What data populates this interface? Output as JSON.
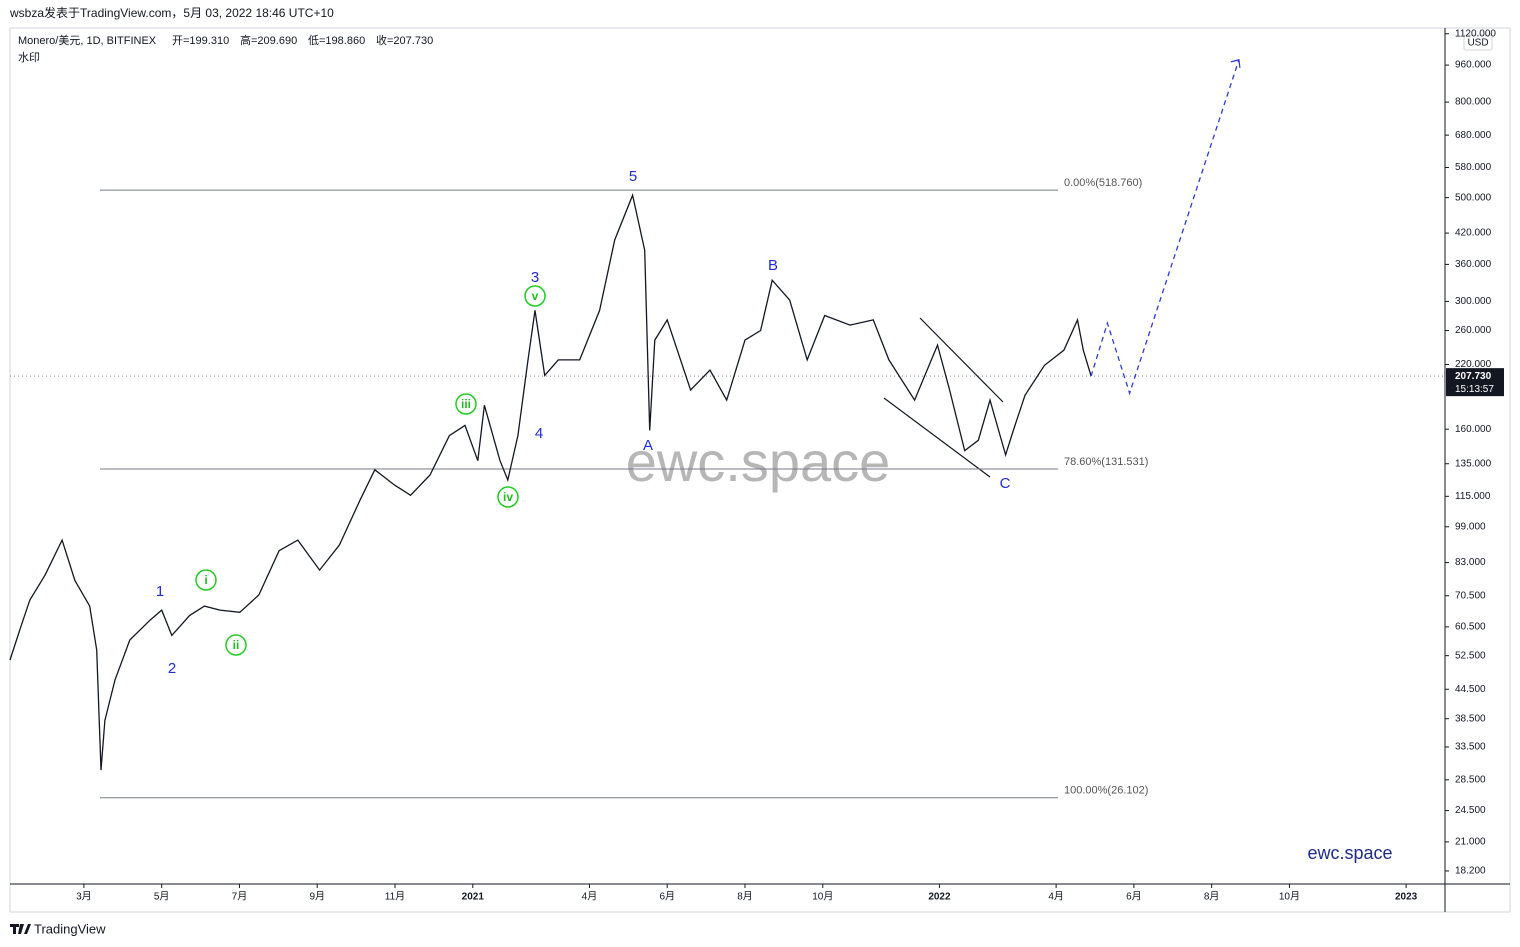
{
  "header": {
    "published": "wsbza发表于TradingView.com，5月 03, 2022 18:46 UTC+10"
  },
  "footer": {
    "brand": "TradingView"
  },
  "chart_data": {
    "type": "line",
    "title": "Monero/美元, 1D, BITFINEX",
    "ohlc": [
      "开=199.310",
      "高=209.690",
      "低=198.860",
      "收=207.730"
    ],
    "subtitle": "水印",
    "currency": "USD",
    "watermark": "ewc.space",
    "brand_note": "ewc.space",
    "log_scale": true,
    "color": "#131722",
    "projection_color": "#2f3ad8",
    "series": [
      {
        "x": [
          0.1,
          0.35,
          0.61,
          1.0,
          1.44,
          1.77,
          2.15,
          2.33,
          2.44,
          2.54,
          2.8,
          3.18,
          3.7,
          4.0,
          4.26,
          4.72,
          5.1,
          5.5,
          6.01,
          6.5,
          7.02,
          7.5,
          8.06,
          8.57,
          9.1,
          9.48,
          9.99,
          10.4,
          10.9,
          11.4,
          11.8,
          12.13,
          12.3,
          12.7,
          12.9,
          13.16,
          13.42,
          13.6,
          13.85,
          14.2,
          14.75,
          15.26,
          15.65,
          16.11,
          16.42,
          16.55,
          16.68,
          17.0,
          17.6,
          18.1,
          18.53,
          19.0,
          19.4,
          19.7,
          20.15,
          20.6,
          21.05,
          21.7,
          22.3,
          22.7,
          23.36,
          23.95,
          24.26,
          24.65,
          25.0,
          25.3,
          25.7,
          25.9,
          26.2,
          26.7,
          27.2,
          27.55,
          27.7,
          27.9
        ],
        "values": [
          51.4,
          59.5,
          69,
          78,
          92.7,
          76,
          67,
          54,
          29.9,
          38.2,
          46.6,
          56.7,
          62.5,
          65.7,
          58,
          64,
          67,
          65.7,
          65,
          70.8,
          88,
          92.7,
          80,
          90.5,
          112.8,
          131,
          121.5,
          115.6,
          127.7,
          155,
          163,
          137,
          180,
          137,
          124.6,
          155,
          225,
          287,
          208.5,
          225,
          225,
          287,
          406,
          506,
          386,
          159,
          248,
          274,
          194,
          214,
          184.6,
          248,
          260,
          333,
          302,
          225,
          280,
          267,
          274,
          225,
          184.6,
          242,
          194,
          144,
          151.5,
          184.6,
          141,
          159,
          189,
          219,
          236,
          274,
          236,
          207.73
        ]
      },
      {
        "x": [
          27.9,
          28.32,
          28.89,
          31.7
        ],
        "values": [
          207.73,
          269.6,
          191,
          985
        ]
      }
    ],
    "last_price": {
      "value": 207.73,
      "label": "207.730"
    },
    "countdown": "15:13:57",
    "fib_levels": [
      {
        "value": 518.76,
        "label": "0.00%(518.760)"
      },
      {
        "value": 131.531,
        "label": "78.60%(131.531)"
      },
      {
        "value": 26.102,
        "label": "100.00%(26.102)"
      }
    ],
    "wave_labels": [
      "1",
      "2",
      "3",
      "4",
      "5",
      "A",
      "B",
      "C"
    ],
    "sub_wave_labels": [
      "i",
      "ii",
      "iii",
      "iv",
      "v"
    ],
    "xlim": [
      0.1,
      37
    ],
    "xticks": [
      {
        "value": 2,
        "label": "3月"
      },
      {
        "value": 4,
        "label": "5月"
      },
      {
        "value": 6,
        "label": "7月"
      },
      {
        "value": 8,
        "label": "9月"
      },
      {
        "value": 10,
        "label": "11月"
      },
      {
        "value": 12,
        "label": "2021"
      },
      {
        "value": 15,
        "label": "4月"
      },
      {
        "value": 17,
        "label": "6月"
      },
      {
        "value": 19,
        "label": "8月"
      },
      {
        "value": 21,
        "label": "10月"
      },
      {
        "value": 24,
        "label": "2022"
      },
      {
        "value": 27,
        "label": "4月"
      },
      {
        "value": 29,
        "label": "6月"
      },
      {
        "value": 31,
        "label": "8月"
      },
      {
        "value": 33,
        "label": "10月"
      },
      {
        "value": 36,
        "label": "2023"
      }
    ],
    "ylim": [
      17.07,
      1152
    ],
    "yticks": [
      {
        "value": 1120,
        "label": "1120.000"
      },
      {
        "value": 960,
        "label": "960.000"
      },
      {
        "value": 800,
        "label": "800.000"
      },
      {
        "value": 680,
        "label": "680.000"
      },
      {
        "value": 580,
        "label": "580.000"
      },
      {
        "value": 500,
        "label": "500.000"
      },
      {
        "value": 420,
        "label": "420.000"
      },
      {
        "value": 360,
        "label": "360.000"
      },
      {
        "value": 300,
        "label": "300.000"
      },
      {
        "value": 260,
        "label": "260.000"
      },
      {
        "value": 220,
        "label": "220.000"
      },
      {
        "value": 160,
        "label": "160.000"
      },
      {
        "value": 135,
        "label": "135.000"
      },
      {
        "value": 115,
        "label": "115.000"
      },
      {
        "value": 99,
        "label": "99.000"
      },
      {
        "value": 83,
        "label": "83.000"
      },
      {
        "value": 70.5,
        "label": "70.500"
      },
      {
        "value": 60.5,
        "label": "60.500"
      },
      {
        "value": 52.5,
        "label": "52.500"
      },
      {
        "value": 44.5,
        "label": "44.500"
      },
      {
        "value": 38.5,
        "label": "38.500"
      },
      {
        "value": 33.5,
        "label": "33.500"
      },
      {
        "value": 28.5,
        "label": "28.500"
      },
      {
        "value": 24.5,
        "label": "24.500"
      },
      {
        "value": 21,
        "label": "21.000"
      },
      {
        "value": 18.2,
        "label": "18.200"
      }
    ]
  }
}
